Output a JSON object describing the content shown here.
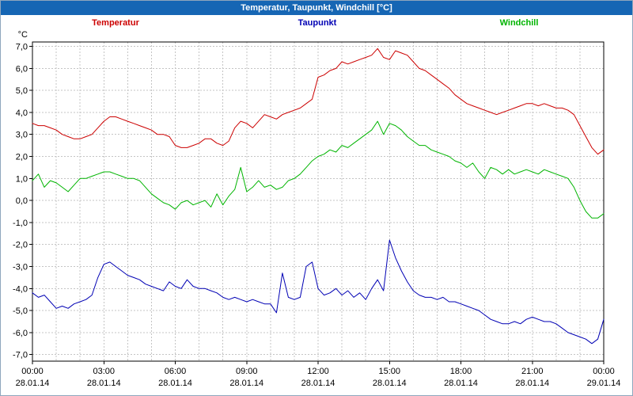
{
  "window": {
    "title": "Temperatur, Taupunkt, Windchill [°C]",
    "title_bar_color": "#1666b4"
  },
  "legend": {
    "items": [
      {
        "label": "Temperatur",
        "color": "#cc0000"
      },
      {
        "label": "Taupunkt",
        "color": "#0000b4"
      },
      {
        "label": "Windchill",
        "color": "#00b400"
      }
    ]
  },
  "chart_data": {
    "type": "line",
    "title": "Temperatur, Taupunkt, Windchill [°C]",
    "unit_label": "°C",
    "x_axis": {
      "start_hour": 0,
      "end_hour": 24,
      "step_hours": 0.25,
      "minor_grid_hours": 1,
      "tick_hours": [
        0,
        3,
        6,
        9,
        12,
        15,
        18,
        21,
        24
      ],
      "tick_labels": [
        "00:00",
        "03:00",
        "06:00",
        "09:00",
        "12:00",
        "15:00",
        "18:00",
        "21:00",
        "00:00"
      ],
      "date_labels": [
        "28.01.14",
        "28.01.14",
        "28.01.14",
        "28.01.14",
        "28.01.14",
        "28.01.14",
        "28.01.14",
        "28.01.14",
        "29.01.14"
      ]
    },
    "y_axis": {
      "ticks": [
        7,
        6,
        5,
        4,
        3,
        2,
        1,
        0,
        -1,
        -2,
        -3,
        -4,
        -5,
        -6,
        -7
      ],
      "tick_labels": [
        "7,0",
        "6,0",
        "5,0",
        "4,0",
        "3,0",
        "2,0",
        "1,0",
        "0,0",
        "-1,0",
        "-2,0",
        "-3,0",
        "-4,0",
        "-5,0",
        "-6,0",
        "-7,0"
      ],
      "ylim": [
        -7.3,
        7.2
      ]
    },
    "grid": {
      "on": true,
      "color": "#c4c4c4",
      "dash": "2 2"
    },
    "series": [
      {
        "name": "Temperatur",
        "color": "#cc0000",
        "values": [
          3.5,
          3.4,
          3.4,
          3.3,
          3.2,
          3.0,
          2.9,
          2.8,
          2.8,
          2.9,
          3.0,
          3.3,
          3.6,
          3.8,
          3.8,
          3.7,
          3.6,
          3.5,
          3.4,
          3.3,
          3.2,
          3.0,
          3.0,
          2.9,
          2.5,
          2.4,
          2.4,
          2.5,
          2.6,
          2.8,
          2.8,
          2.6,
          2.5,
          2.7,
          3.3,
          3.6,
          3.5,
          3.3,
          3.6,
          3.9,
          3.8,
          3.7,
          3.9,
          4.0,
          4.1,
          4.2,
          4.4,
          4.6,
          5.6,
          5.7,
          5.9,
          6.0,
          6.3,
          6.2,
          6.3,
          6.4,
          6.5,
          6.6,
          6.9,
          6.5,
          6.4,
          6.8,
          6.7,
          6.6,
          6.3,
          6.0,
          5.9,
          5.7,
          5.5,
          5.3,
          5.1,
          4.8,
          4.6,
          4.4,
          4.3,
          4.2,
          4.1,
          4.0,
          3.9,
          4.0,
          4.1,
          4.2,
          4.3,
          4.4,
          4.4,
          4.3,
          4.4,
          4.3,
          4.2,
          4.2,
          4.1,
          3.9,
          3.4,
          2.9,
          2.4,
          2.1,
          2.3
        ]
      },
      {
        "name": "Taupunkt",
        "color": "#0000b4",
        "values": [
          -4.2,
          -4.4,
          -4.3,
          -4.6,
          -4.9,
          -4.8,
          -4.9,
          -4.7,
          -4.6,
          -4.5,
          -4.3,
          -3.5,
          -2.9,
          -2.8,
          -3.0,
          -3.2,
          -3.4,
          -3.5,
          -3.6,
          -3.8,
          -3.9,
          -4.0,
          -4.1,
          -3.7,
          -3.9,
          -4.0,
          -3.6,
          -3.9,
          -4.0,
          -4.0,
          -4.1,
          -4.2,
          -4.4,
          -4.5,
          -4.4,
          -4.5,
          -4.6,
          -4.5,
          -4.6,
          -4.7,
          -4.7,
          -5.1,
          -3.3,
          -4.4,
          -4.5,
          -4.4,
          -3.0,
          -2.8,
          -4.0,
          -4.3,
          -4.2,
          -4.0,
          -4.3,
          -4.1,
          -4.4,
          -4.2,
          -4.5,
          -4.0,
          -3.6,
          -4.1,
          -1.8,
          -2.6,
          -3.2,
          -3.7,
          -4.1,
          -4.3,
          -4.4,
          -4.4,
          -4.5,
          -4.4,
          -4.6,
          -4.6,
          -4.7,
          -4.8,
          -4.9,
          -5.0,
          -5.2,
          -5.4,
          -5.5,
          -5.6,
          -5.6,
          -5.5,
          -5.6,
          -5.4,
          -5.3,
          -5.4,
          -5.5,
          -5.5,
          -5.6,
          -5.8,
          -6.0,
          -6.1,
          -6.2,
          -6.3,
          -6.5,
          -6.3,
          -5.4
        ]
      },
      {
        "name": "Windchill",
        "color": "#00b400",
        "values": [
          0.9,
          1.2,
          0.6,
          0.9,
          0.8,
          0.6,
          0.4,
          0.7,
          1.0,
          1.0,
          1.1,
          1.2,
          1.3,
          1.3,
          1.2,
          1.1,
          1.0,
          1.0,
          0.9,
          0.6,
          0.3,
          0.1,
          -0.1,
          -0.2,
          -0.4,
          -0.1,
          0.0,
          -0.2,
          -0.1,
          0.0,
          -0.3,
          0.3,
          -0.2,
          0.2,
          0.5,
          1.5,
          0.4,
          0.6,
          0.9,
          0.6,
          0.7,
          0.5,
          0.6,
          0.9,
          1.0,
          1.2,
          1.5,
          1.8,
          2.0,
          2.1,
          2.3,
          2.2,
          2.5,
          2.4,
          2.6,
          2.8,
          3.0,
          3.2,
          3.6,
          3.0,
          3.5,
          3.4,
          3.2,
          2.9,
          2.7,
          2.5,
          2.5,
          2.3,
          2.2,
          2.1,
          2.0,
          1.8,
          1.7,
          1.5,
          1.7,
          1.3,
          1.0,
          1.5,
          1.4,
          1.2,
          1.4,
          1.2,
          1.3,
          1.4,
          1.3,
          1.2,
          1.4,
          1.3,
          1.2,
          1.1,
          1.0,
          0.6,
          0.0,
          -0.5,
          -0.8,
          -0.8,
          -0.6
        ]
      }
    ]
  }
}
